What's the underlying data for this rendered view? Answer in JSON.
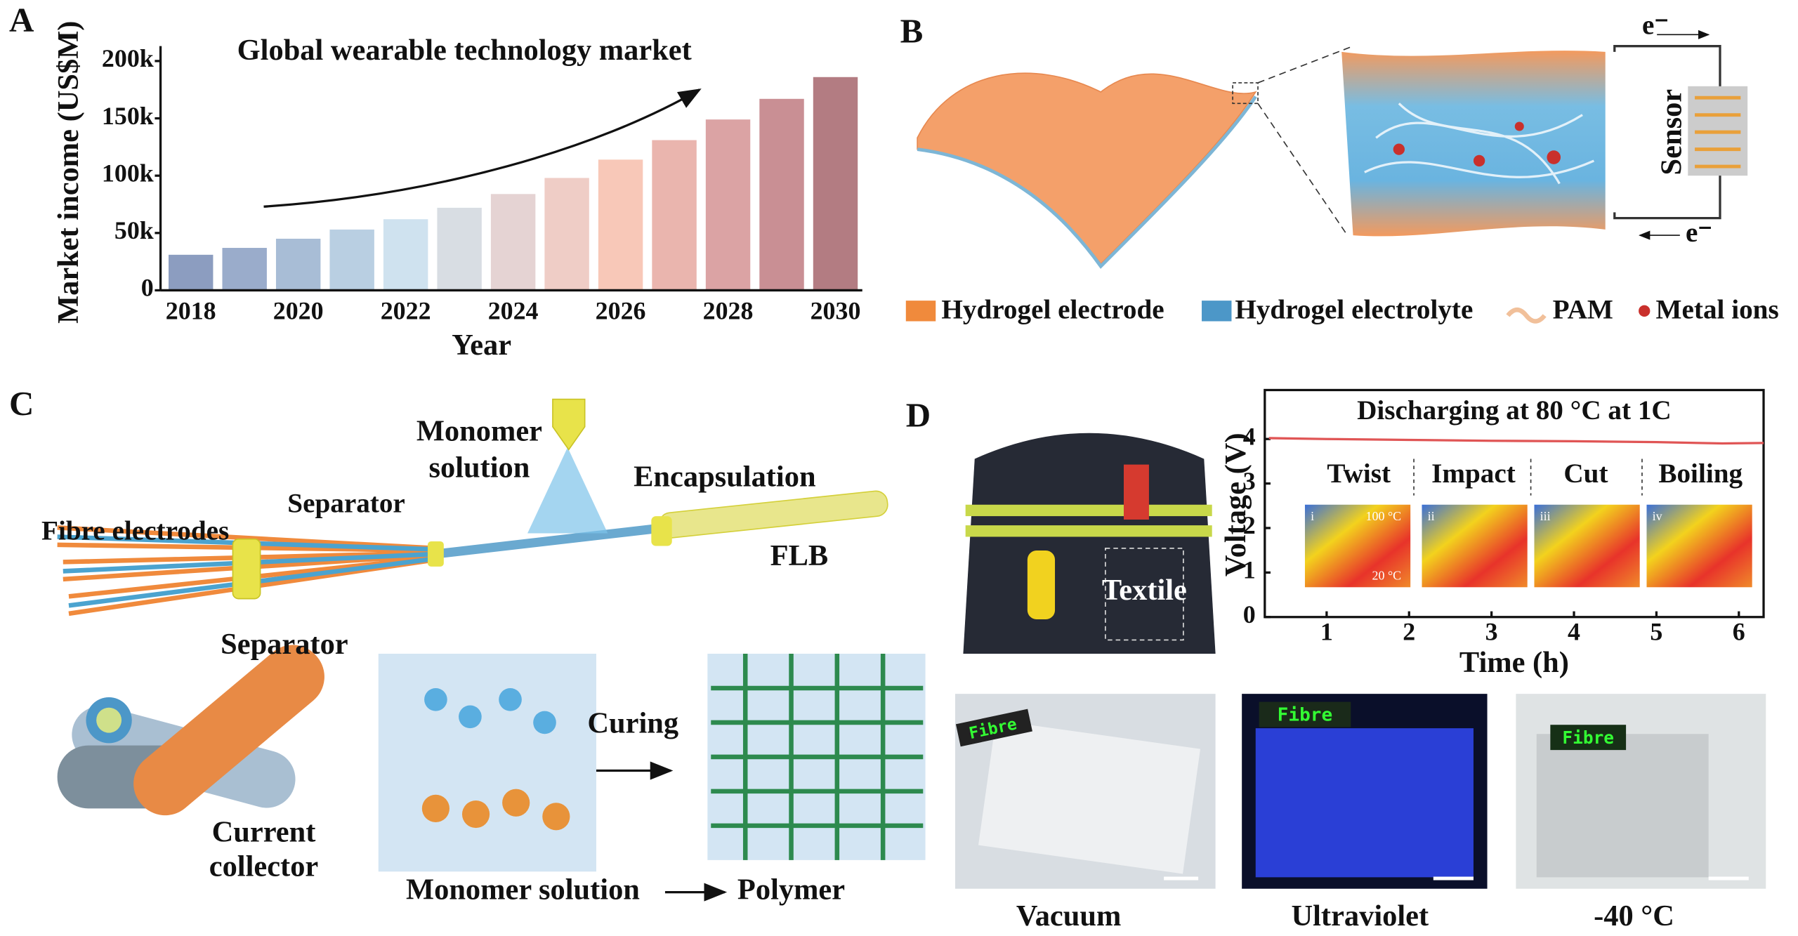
{
  "chart_data": [
    {
      "type": "bar",
      "title": "Global wearable technology market",
      "x_label": "Year",
      "y_label": "Market income (US$M)",
      "categories": [
        "2018",
        null,
        "2020",
        null,
        "2022",
        null,
        "2024",
        null,
        "2026",
        null,
        "2028",
        null,
        "2030"
      ],
      "values": [
        31000,
        37000,
        45000,
        53000,
        62000,
        72000,
        84000,
        98000,
        114000,
        131000,
        149000,
        167000,
        186000
      ],
      "colors": [
        "#8c9dc0",
        "#9aaccb",
        "#a8bdd6",
        "#b9cfe2",
        "#cfe2ef",
        "#d8dde3",
        "#e5d3d3",
        "#efcdc6",
        "#f8c8b8",
        "#eab5ae",
        "#dba3a4",
        "#c98f94",
        "#b37c82"
      ],
      "ylim": [
        0,
        213000
      ],
      "yticks": [
        0,
        {
          "value": 50000,
          "label": "50k"
        },
        {
          "value": 100000,
          "label": "100k"
        },
        {
          "value": 150000,
          "label": "150k"
        },
        {
          "value": 200000,
          "label": "200k"
        }
      ]
    },
    {
      "type": "line",
      "title": "Discharging at 80 °C at 1C",
      "x_label": "Time (h)",
      "y_label": "Voltage (V)",
      "x": [
        0.3,
        1,
        2,
        3,
        4,
        5,
        5.8,
        6.3
      ],
      "series": [
        {
          "name": "Voltage",
          "color": "#e05555",
          "values": [
            4.02,
            4.0,
            3.98,
            3.96,
            3.95,
            3.93,
            3.9,
            3.91
          ]
        }
      ],
      "xlim": [
        0.25,
        6.3
      ],
      "xticks": [
        1,
        2,
        3,
        4,
        5,
        6
      ],
      "ylim": [
        0,
        5.1
      ],
      "yticks": [
        0,
        1,
        2,
        3,
        4
      ],
      "annotations": [
        "Twist",
        "Impact",
        "Cut",
        "Boiling"
      ],
      "thermal_labels": [
        "i",
        "ii",
        "iii",
        "iv"
      ],
      "temperatures": [
        "100 °C",
        "20 °C"
      ]
    }
  ],
  "panel_labels": [
    "A",
    "B",
    "C",
    "D"
  ],
  "panel_b": {
    "sensor": "Sensor",
    "electron_top": "e⁻",
    "electron_bottom": "e⁻",
    "legend": [
      "Hydrogel electrode",
      "Hydrogel electrolyte",
      "PAM",
      "Metal ions"
    ]
  },
  "panel_c": {
    "monomer_solution": [
      "Monomer",
      "solution"
    ],
    "encapsulation": "Encapsulation",
    "separator_top": "Separator",
    "fibre_electrodes": "Fibre electrodes",
    "flb": "FLB",
    "separator_bottom": "Separator",
    "current_collector": [
      "Current",
      "collector"
    ],
    "curing": "Curing",
    "from": "Monomer solution",
    "to": "Polymer"
  },
  "panel_d": {
    "textile": "Textile",
    "led": "Fibre",
    "photos": [
      "Vacuum",
      "Ultraviolet",
      "-40 °C"
    ]
  }
}
